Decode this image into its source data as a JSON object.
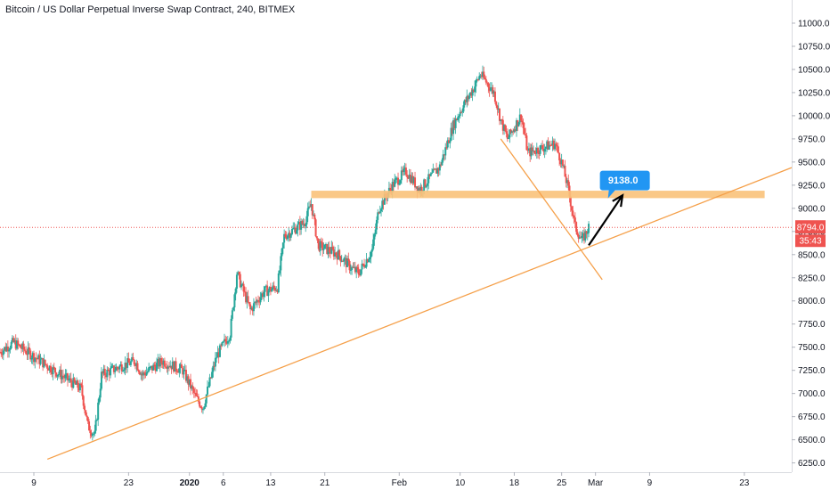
{
  "header": {
    "title": "Bitcoin / US Dollar Perpetual Inverse Swap Contract, 240, BITMEX"
  },
  "price_scale": {
    "ticks": [
      "11000.0",
      "10750.0",
      "10500.0",
      "10250.0",
      "10000.0",
      "9750.0",
      "9500.0",
      "9250.0",
      "9000.0",
      "8750.0",
      "8500.0",
      "8250.0",
      "8000.0",
      "7750.0",
      "7500.0",
      "7250.0",
      "7000.0",
      "6750.0",
      "6500.0",
      "6250.0"
    ],
    "current_price_label": "8794.0",
    "countdown_label": "35:43"
  },
  "time_scale": {
    "ticks": [
      "9",
      "23",
      "2020",
      "6",
      "13",
      "21",
      "Feb",
      "10",
      "18",
      "25",
      "Mar",
      "9",
      "23"
    ]
  },
  "annotation": {
    "target_label": "9138.0"
  },
  "colors": {
    "up": "#26a69a",
    "down": "#ef5350",
    "drawing": "#f5a04a",
    "zone": "#f9c27a",
    "callout": "#2196f3",
    "current_price": "#ef5350"
  },
  "chart_data": {
    "type": "candlestick",
    "title": "Bitcoin / US Dollar Perpetual Inverse Swap Contract, 240, BITMEX",
    "y_range": [
      6150,
      11250
    ],
    "x_range": [
      "2019-12-04",
      "2020-03-30"
    ],
    "price_path": [
      [
        "2019-12-04",
        7450
      ],
      [
        "2019-12-06",
        7550
      ],
      [
        "2019-12-09",
        7400
      ],
      [
        "2019-12-12",
        7250
      ],
      [
        "2019-12-14",
        7150
      ],
      [
        "2019-12-16",
        7050
      ],
      [
        "2019-12-17",
        6650
      ],
      [
        "2019-12-18",
        6550
      ],
      [
        "2019-12-19",
        7200
      ],
      [
        "2019-12-22",
        7300
      ],
      [
        "2019-12-24",
        7350
      ],
      [
        "2019-12-25",
        7200
      ],
      [
        "2019-12-28",
        7350
      ],
      [
        "2019-12-31",
        7250
      ],
      [
        "2020-01-02",
        6950
      ],
      [
        "2020-01-03",
        6850
      ],
      [
        "2020-01-05",
        7400
      ],
      [
        "2020-01-07",
        7650
      ],
      [
        "2020-01-08",
        8300
      ],
      [
        "2020-01-10",
        7900
      ],
      [
        "2020-01-12",
        8100
      ],
      [
        "2020-01-14",
        8150
      ],
      [
        "2020-01-15",
        8700
      ],
      [
        "2020-01-18",
        8850
      ],
      [
        "2020-01-19",
        9050
      ],
      [
        "2020-01-20",
        8600
      ],
      [
        "2020-01-23",
        8500
      ],
      [
        "2020-01-25",
        8350
      ],
      [
        "2020-01-26",
        8300
      ],
      [
        "2020-01-28",
        8550
      ],
      [
        "2020-01-29",
        9000
      ],
      [
        "2020-01-31",
        9250
      ],
      [
        "2020-02-02",
        9400
      ],
      [
        "2020-02-04",
        9200
      ],
      [
        "2020-02-07",
        9450
      ],
      [
        "2020-02-09",
        9900
      ],
      [
        "2020-02-10",
        10050
      ],
      [
        "2020-02-12",
        10300
      ],
      [
        "2020-02-13",
        10450
      ],
      [
        "2020-02-15",
        10250
      ],
      [
        "2020-02-16",
        9950
      ],
      [
        "2020-02-17",
        9750
      ],
      [
        "2020-02-19",
        10000
      ],
      [
        "2020-02-20",
        9600
      ],
      [
        "2020-02-22",
        9650
      ],
      [
        "2020-02-24",
        9700
      ],
      [
        "2020-02-25",
        9500
      ],
      [
        "2020-02-26",
        9200
      ],
      [
        "2020-02-27",
        8800
      ],
      [
        "2020-02-28",
        8650
      ],
      [
        "2020-02-29",
        8794
      ]
    ],
    "horizontal_zone": {
      "from": "2020-01-19",
      "to": "2020-03-26",
      "y_min": 9110,
      "y_max": 9190
    },
    "lines": [
      {
        "from": [
          "2019-12-11",
          6290
        ],
        "to": [
          "2020-03-30",
          9440
        ]
      },
      {
        "from": [
          "2020-02-16",
          9750
        ],
        "to": [
          "2020-03-02",
          8230
        ]
      }
    ],
    "arrow": {
      "from": [
        "2020-02-29",
        8600
      ],
      "to": [
        "2020-03-05",
        9140
      ]
    },
    "callout_at": [
      "2020-03-06",
      9300
    ],
    "current_price": 8794
  }
}
